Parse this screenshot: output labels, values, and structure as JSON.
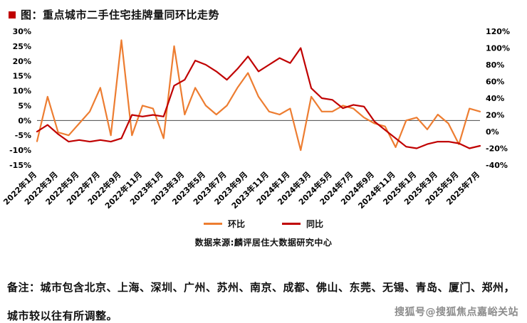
{
  "header": {
    "title": "图：重点城市二手住宅挂牌量同环比走势",
    "accent_color": "#C00000"
  },
  "chart_data": {
    "type": "line",
    "title": "图：重点城市二手住宅挂牌量同环比走势",
    "x_tick_labels": [
      "2022年1月",
      "2022年3月",
      "2022年5月",
      "2022年7月",
      "2022年9月",
      "2022年11月",
      "2023年1月",
      "2023年3月",
      "2023年5月",
      "2023年7月",
      "2023年9月",
      "2023年11月",
      "2024年1月",
      "2024年3月",
      "2024年5月",
      "2024年7月",
      "2024年9月",
      "2024年11月",
      "2025年1月",
      "2025年3月",
      "2025年5月",
      "2025年7月"
    ],
    "x_tick_every": 2,
    "left_axis": {
      "min": -15,
      "max": 30,
      "step": 5,
      "tick_labels": [
        "30%",
        "25%",
        "20%",
        "15%",
        "10%",
        "5%",
        "0%",
        "-5%",
        "-10%",
        "-15%"
      ]
    },
    "right_axis": {
      "min": -40,
      "max": 120,
      "step": 20,
      "tick_labels": [
        "120%",
        "100%",
        "80%",
        "60%",
        "40%",
        "20%",
        "0%",
        "-20%",
        "-40%"
      ]
    },
    "grid": false,
    "legend_position": "bottom",
    "series": [
      {
        "name": "环比",
        "key": "mom-line",
        "axis": "left",
        "color": "#ED7D31",
        "values": [
          -7,
          8,
          -4,
          -5,
          -1,
          3,
          11,
          -5,
          27,
          -5,
          5,
          4,
          -6,
          25,
          2,
          11,
          5,
          2,
          5,
          11,
          16,
          8,
          3,
          2,
          4,
          -10,
          8,
          3,
          3,
          5,
          4,
          1,
          -1,
          -2,
          -9,
          0,
          1,
          -3,
          2,
          -1,
          -8,
          4,
          3
        ]
      },
      {
        "name": "同比",
        "key": "yoy-line",
        "axis": "right",
        "color": "#C00000",
        "values": [
          0,
          8,
          -3,
          -12,
          -10,
          -12,
          -10,
          -12,
          -8,
          20,
          18,
          20,
          18,
          55,
          62,
          85,
          80,
          72,
          62,
          75,
          90,
          72,
          80,
          88,
          82,
          100,
          52,
          40,
          38,
          28,
          32,
          30,
          12,
          2,
          -8,
          -18,
          -20,
          -15,
          -12,
          -12,
          -14,
          -20,
          -17
        ]
      }
    ],
    "source": "数据来源:麟评居住大数据研究中心"
  },
  "notes": {
    "line1": "备注：城市包含北京、上海、深圳、广州、苏州、南京、成都、佛山、东莞、无锡、青岛、厦门、郑州，",
    "line2": "城市较以往有所调整。"
  },
  "watermark": "搜狐号@搜狐焦点嘉峪关站"
}
